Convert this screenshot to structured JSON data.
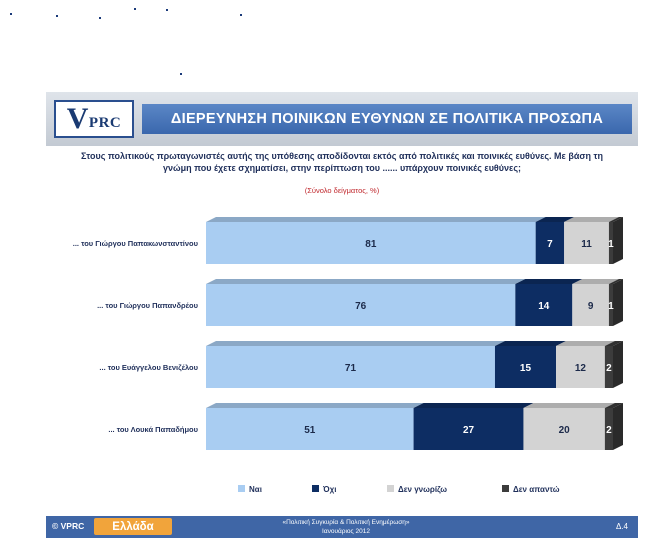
{
  "header": {
    "logo_text": "VPRC",
    "logo_v": "V",
    "logo_rest": "PRC",
    "title": "ΔΙΕΡΕΥΝΗΣΗ ΠΟΙΝΙΚΩΝ ΕΥΘΥΝΩΝ ΣΕ ΠΟΛΙΤΙΚΑ ΠΡΟΣΩΠΑ"
  },
  "question": {
    "line1": "Στους πολιτικούς πρωταγωνιστές αυτής της υπόθεσης αποδίδονται εκτός από πολιτικές και ποινικές ευθύνες. Με βάση τη",
    "line2": "γνώμη που έχετε σχηματίσει, στην περίπτωση του ...... υπάρχουν ποινικές ευθύνες;",
    "sample": "(Σύνολο δείγματος, %)"
  },
  "chart_data": {
    "type": "bar",
    "orientation": "horizontal",
    "stacked": true,
    "three_d": true,
    "categories": [
      "... του Γιώργου Παπακωνσταντίνου",
      "... του Γιώργου Παπανδρέου",
      "... του Ευάγγελου Βενιζέλου",
      "... του Λουκά Παπαδήμου"
    ],
    "series": [
      {
        "name": "Ναι",
        "color": "#a9cdf2",
        "label_color": "#1c2a4a",
        "values": [
          81,
          76,
          71,
          51
        ]
      },
      {
        "name": "Όχι",
        "color": "#0d2d63",
        "label_color": "#ffffff",
        "values": [
          7,
          14,
          15,
          27
        ]
      },
      {
        "name": "Δεν γνωρίζω",
        "color": "#d3d3d3",
        "label_color": "#1c2a4a",
        "values": [
          11,
          9,
          12,
          20
        ]
      },
      {
        "name": "Δεν απαντώ",
        "color": "#3c3c3c",
        "label_color": "#ffffff",
        "values": [
          1,
          1,
          2,
          2
        ]
      }
    ],
    "xlim": [
      0,
      100
    ],
    "grid": false,
    "legend_position": "bottom"
  },
  "footer": {
    "vprc": "© VPRC",
    "ellada": "Ελλάδα",
    "caption_line1": "«Πολιτική Συγκυρία & Πολιτική Ενημέρωση»",
    "caption_line2": "Ιανουάριος 2012",
    "page": "Δ.4"
  }
}
